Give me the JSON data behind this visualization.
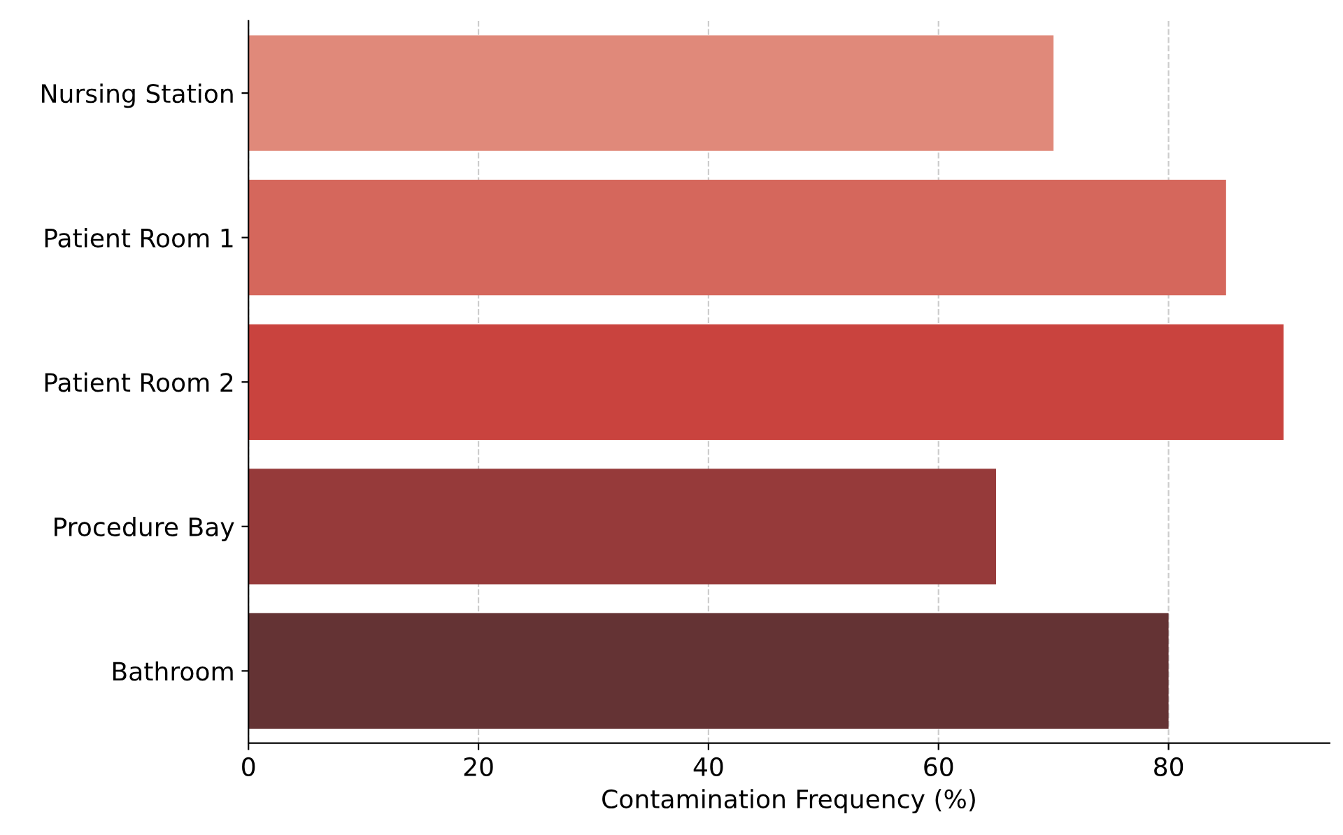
{
  "chart_data": {
    "type": "bar",
    "orientation": "horizontal",
    "xlabel": "Contamination Frequency (%)",
    "categories": [
      "Nursing Station",
      "Patient Room 1",
      "Patient Room 2",
      "Procedure Bay",
      "Bathroom"
    ],
    "values": [
      70,
      85,
      90,
      65,
      80
    ],
    "colors": [
      "#e0897a",
      "#d5675c",
      "#c9433e",
      "#963a3a",
      "#643334"
    ],
    "xlim": [
      0,
      94
    ],
    "xticks": [
      0,
      20,
      40,
      60,
      80
    ],
    "grid": "x"
  }
}
